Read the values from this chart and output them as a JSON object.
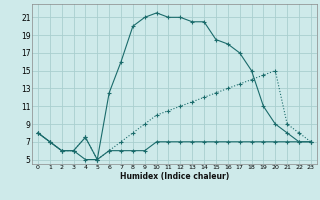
{
  "xlabel": "Humidex (Indice chaleur)",
  "bg_color": "#ceeaea",
  "grid_color": "#aacfcf",
  "line_color": "#1a6b6b",
  "xlim_min": -0.5,
  "xlim_max": 23.5,
  "ylim_min": 4.5,
  "ylim_max": 22.5,
  "xticks": [
    0,
    1,
    2,
    3,
    4,
    5,
    6,
    7,
    8,
    9,
    10,
    11,
    12,
    13,
    14,
    15,
    16,
    17,
    18,
    19,
    20,
    21,
    22,
    23
  ],
  "yticks": [
    5,
    7,
    9,
    11,
    13,
    15,
    17,
    19,
    21
  ],
  "line1_x": [
    0,
    1,
    2,
    3,
    4,
    5,
    6,
    7,
    8,
    9,
    10,
    11,
    12,
    13,
    14,
    15,
    16,
    17,
    18,
    19,
    20,
    21,
    22,
    23
  ],
  "line1_y": [
    8,
    7,
    6,
    6,
    5,
    5,
    6,
    6,
    6,
    6,
    7,
    7,
    7,
    7,
    7,
    7,
    7,
    7,
    7,
    7,
    7,
    7,
    7,
    7
  ],
  "line2_x": [
    0,
    1,
    2,
    3,
    4,
    5,
    6,
    7,
    8,
    9,
    10,
    11,
    12,
    13,
    14,
    15,
    16,
    17,
    18,
    19,
    20,
    21,
    22,
    23
  ],
  "line2_y": [
    8,
    7,
    6,
    6,
    7.5,
    5,
    12.5,
    16,
    20,
    21,
    21.5,
    21,
    21,
    20.5,
    20.5,
    18.5,
    18,
    17,
    15,
    11,
    9,
    8,
    7,
    7
  ],
  "line3_x": [
    0,
    1,
    2,
    3,
    4,
    5,
    6,
    7,
    8,
    9,
    10,
    11,
    12,
    13,
    14,
    15,
    16,
    17,
    18,
    19,
    20,
    21,
    22,
    23
  ],
  "line3_y": [
    8,
    7,
    6,
    6,
    7.5,
    5,
    6,
    7,
    8,
    9,
    10,
    10.5,
    11,
    11.5,
    12,
    12.5,
    13,
    13.5,
    14,
    14.5,
    15,
    9,
    8,
    7
  ]
}
